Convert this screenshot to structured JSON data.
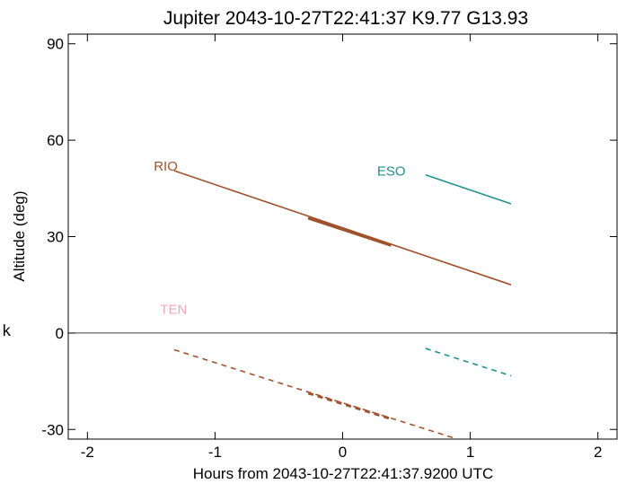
{
  "chart_data": {
    "type": "line",
    "title": "Jupiter 2043-10-27T22:41:37  K9.77  G13.93",
    "xlabel": "Hours from 2043-10-27T22:41:37.9200 UTC",
    "ylabel": "Altitude (deg)",
    "xlim": [
      -2.15,
      2.15
    ],
    "ylim": [
      -33,
      93
    ],
    "xticks": [
      -2,
      -1,
      0,
      1,
      2
    ],
    "yticks": [
      -30,
      0,
      30,
      60,
      90
    ],
    "zero_line": true,
    "grid": false,
    "stray_text": "k",
    "series": [
      {
        "name": "RIO",
        "color": "#a0522d",
        "label_color": "#a0522d",
        "x": [
          -1.32,
          1.32
        ],
        "y": [
          50.5,
          15.0
        ],
        "highlight_x": [
          -0.27,
          0.38
        ],
        "highlight_y": [
          35.8,
          27.3
        ],
        "mirror_x": [
          -1.32,
          0.9
        ],
        "mirror_y": [
          -5.2,
          -33
        ],
        "mirror_highlight_x": [
          -0.27,
          0.38
        ],
        "mirror_highlight_y": [
          -18.7,
          -26.7
        ]
      },
      {
        "name": "ESO",
        "color": "#20908a",
        "label_color": "#20908a",
        "x": [
          0.65,
          1.32
        ],
        "y": [
          49.2,
          40.2
        ],
        "mirror_x": [
          0.65,
          1.32
        ],
        "mirror_y": [
          -4.8,
          -13.3
        ]
      },
      {
        "name": "TEN",
        "color": "#f4a6b7",
        "label_color": "#f4a6b7",
        "x": [],
        "y": []
      }
    ],
    "labels": [
      {
        "series": "RIO",
        "x": -1.48,
        "y": 50.5
      },
      {
        "series": "ESO",
        "x": 0.27,
        "y": 49.0
      },
      {
        "series": "TEN",
        "x": -1.43,
        "y": 6.0
      }
    ]
  }
}
